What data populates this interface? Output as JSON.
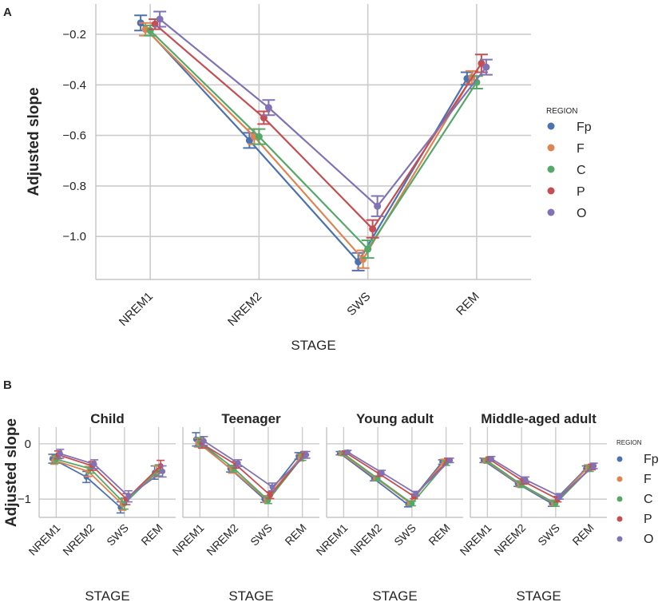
{
  "chart_data": [
    {
      "panel": "A",
      "type": "line",
      "title": "",
      "xlabel": "STAGE",
      "ylabel": "Adjusted slope",
      "ylim": [
        -1.17,
        -0.08
      ],
      "yticks": [
        -1.0,
        -0.8,
        -0.6,
        -0.4,
        -0.2
      ],
      "ytick_labels": [
        "−1.0",
        "−0.8",
        "−0.6",
        "−0.4",
        "−0.2"
      ],
      "categories": [
        "NREM1",
        "NREM2",
        "SWS",
        "REM"
      ],
      "legend_title": "REGION",
      "legend_position": "right",
      "grid": true,
      "series": [
        {
          "name": "Fp",
          "color": "#4c72b0",
          "values": [
            -0.155,
            -0.62,
            -1.1,
            -0.375
          ],
          "errors": [
            0.03,
            0.03,
            0.035,
            0.025
          ]
        },
        {
          "name": "F",
          "color": "#dd8452",
          "values": [
            -0.18,
            -0.605,
            -1.09,
            -0.37
          ],
          "errors": [
            0.025,
            0.03,
            0.035,
            0.025
          ]
        },
        {
          "name": "C",
          "color": "#55a868",
          "values": [
            -0.185,
            -0.605,
            -1.05,
            -0.39
          ],
          "errors": [
            0.02,
            0.03,
            0.035,
            0.025
          ]
        },
        {
          "name": "P",
          "color": "#c44e52",
          "values": [
            -0.16,
            -0.53,
            -0.97,
            -0.315
          ],
          "errors": [
            0.02,
            0.025,
            0.035,
            0.035
          ]
        },
        {
          "name": "O",
          "color": "#8172b3",
          "values": [
            -0.14,
            -0.49,
            -0.88,
            -0.33
          ],
          "errors": [
            0.03,
            0.03,
            0.04,
            0.03
          ]
        }
      ]
    },
    {
      "panel": "B",
      "type": "line",
      "ylabel": "Adjusted slope",
      "xlabel": "STAGE",
      "categories": [
        "NREM1",
        "NREM2",
        "SWS",
        "REM"
      ],
      "ylim": [
        -1.33,
        0.3
      ],
      "yticks": [
        0,
        -1
      ],
      "ytick_labels": [
        "0",
        "−1"
      ],
      "legend_title": "REGION",
      "legend_position": "right",
      "grid": true,
      "facets": [
        {
          "title": "Child",
          "series": [
            {
              "name": "Fp",
              "color": "#4c72b0",
              "values": [
                -0.27,
                -0.6,
                -1.15,
                -0.52
              ],
              "errors": [
                0.08,
                0.1,
                0.1,
                0.12
              ]
            },
            {
              "name": "F",
              "color": "#dd8452",
              "values": [
                -0.3,
                -0.5,
                -1.1,
                -0.5
              ],
              "errors": [
                0.07,
                0.09,
                0.1,
                0.1
              ]
            },
            {
              "name": "C",
              "color": "#55a868",
              "values": [
                -0.28,
                -0.45,
                -1.08,
                -0.48
              ],
              "errors": [
                0.07,
                0.08,
                0.1,
                0.1
              ]
            },
            {
              "name": "P",
              "color": "#c44e52",
              "values": [
                -0.2,
                -0.4,
                -1.0,
                -0.4
              ],
              "errors": [
                0.07,
                0.08,
                0.1,
                0.1
              ]
            },
            {
              "name": "O",
              "color": "#8172b3",
              "values": [
                -0.18,
                -0.37,
                -0.95,
                -0.5
              ],
              "errors": [
                0.08,
                0.08,
                0.1,
                0.1
              ]
            }
          ]
        },
        {
          "title": "Teenager",
          "series": [
            {
              "name": "Fp",
              "color": "#4c72b0",
              "values": [
                0.08,
                -0.45,
                -1.0,
                -0.22
              ],
              "errors": [
                0.12,
                0.06,
                0.06,
                0.06
              ]
            },
            {
              "name": "F",
              "color": "#dd8452",
              "values": [
                0.02,
                -0.47,
                -1.0,
                -0.25
              ],
              "errors": [
                0.08,
                0.06,
                0.06,
                0.06
              ]
            },
            {
              "name": "C",
              "color": "#55a868",
              "values": [
                0.03,
                -0.45,
                -1.02,
                -0.24
              ],
              "errors": [
                0.08,
                0.06,
                0.06,
                0.06
              ]
            },
            {
              "name": "P",
              "color": "#c44e52",
              "values": [
                0.0,
                -0.38,
                -0.93,
                -0.2
              ],
              "errors": [
                0.08,
                0.06,
                0.06,
                0.06
              ]
            },
            {
              "name": "O",
              "color": "#8172b3",
              "values": [
                0.05,
                -0.35,
                -0.78,
                -0.2
              ],
              "errors": [
                0.08,
                0.06,
                0.07,
                0.06
              ]
            }
          ]
        },
        {
          "title": "Young adult",
          "series": [
            {
              "name": "Fp",
              "color": "#4c72b0",
              "values": [
                -0.17,
                -0.63,
                -1.1,
                -0.33
              ],
              "errors": [
                0.03,
                0.04,
                0.04,
                0.04
              ]
            },
            {
              "name": "F",
              "color": "#dd8452",
              "values": [
                -0.18,
                -0.62,
                -1.07,
                -0.32
              ],
              "errors": [
                0.03,
                0.04,
                0.04,
                0.04
              ]
            },
            {
              "name": "C",
              "color": "#55a868",
              "values": [
                -0.18,
                -0.63,
                -1.08,
                -0.35
              ],
              "errors": [
                0.03,
                0.04,
                0.04,
                0.04
              ]
            },
            {
              "name": "P",
              "color": "#c44e52",
              "values": [
                -0.16,
                -0.55,
                -0.95,
                -0.3
              ],
              "errors": [
                0.03,
                0.04,
                0.04,
                0.04
              ]
            },
            {
              "name": "O",
              "color": "#8172b3",
              "values": [
                -0.15,
                -0.52,
                -0.9,
                -0.3
              ],
              "errors": [
                0.03,
                0.04,
                0.04,
                0.04
              ]
            }
          ]
        },
        {
          "title": "Middle-aged adult",
          "series": [
            {
              "name": "Fp",
              "color": "#4c72b0",
              "values": [
                -0.3,
                -0.72,
                -1.08,
                -0.45
              ],
              "errors": [
                0.04,
                0.05,
                0.05,
                0.05
              ]
            },
            {
              "name": "F",
              "color": "#dd8452",
              "values": [
                -0.3,
                -0.73,
                -1.07,
                -0.43
              ],
              "errors": [
                0.04,
                0.05,
                0.05,
                0.05
              ]
            },
            {
              "name": "C",
              "color": "#55a868",
              "values": [
                -0.31,
                -0.74,
                -1.08,
                -0.45
              ],
              "errors": [
                0.04,
                0.05,
                0.05,
                0.05
              ]
            },
            {
              "name": "P",
              "color": "#c44e52",
              "values": [
                -0.28,
                -0.68,
                -1.0,
                -0.42
              ],
              "errors": [
                0.04,
                0.05,
                0.05,
                0.05
              ]
            },
            {
              "name": "O",
              "color": "#8172b3",
              "values": [
                -0.27,
                -0.65,
                -0.95,
                -0.4
              ],
              "errors": [
                0.04,
                0.05,
                0.05,
                0.05
              ]
            }
          ]
        }
      ]
    }
  ],
  "labels": {
    "panel_a": "A",
    "panel_b": "B"
  }
}
